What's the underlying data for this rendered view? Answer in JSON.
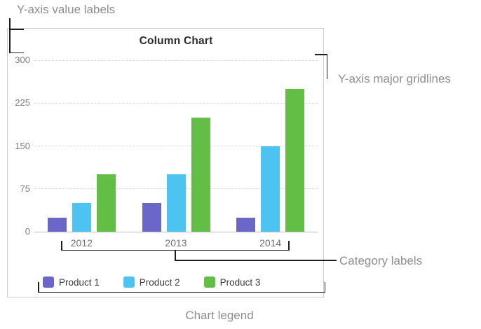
{
  "annotations": {
    "y_value_labels": "Y-axis value labels",
    "y_major_gridlines": "Y-axis major gridlines",
    "category_labels": "Category labels",
    "chart_legend": "Chart legend"
  },
  "chart_data": {
    "type": "bar",
    "title": "Column Chart",
    "categories": [
      "2012",
      "2013",
      "2014"
    ],
    "series": [
      {
        "name": "Product 1",
        "color": "#6a67c8",
        "values": [
          25,
          50,
          25
        ]
      },
      {
        "name": "Product 2",
        "color": "#4dc3f2",
        "values": [
          50,
          100,
          150
        ]
      },
      {
        "name": "Product 3",
        "color": "#63be45",
        "values": [
          100,
          200,
          250
        ]
      }
    ],
    "ylim": [
      0,
      300
    ],
    "yticks": [
      0,
      75,
      150,
      225,
      300
    ],
    "grid": true,
    "legend_position": "bottom",
    "xlabel": "",
    "ylabel": ""
  },
  "colors": {
    "annotation_text": "#8e8e93",
    "callout_line": "#1d1d1f",
    "chart_border": "#cbcbcb",
    "gridline": "#d9d9dc",
    "axis_line": "#c2c2c6",
    "axis_text": "#7d7d82",
    "category_text": "#6f6f74",
    "title_text": "#2c2c2e"
  }
}
